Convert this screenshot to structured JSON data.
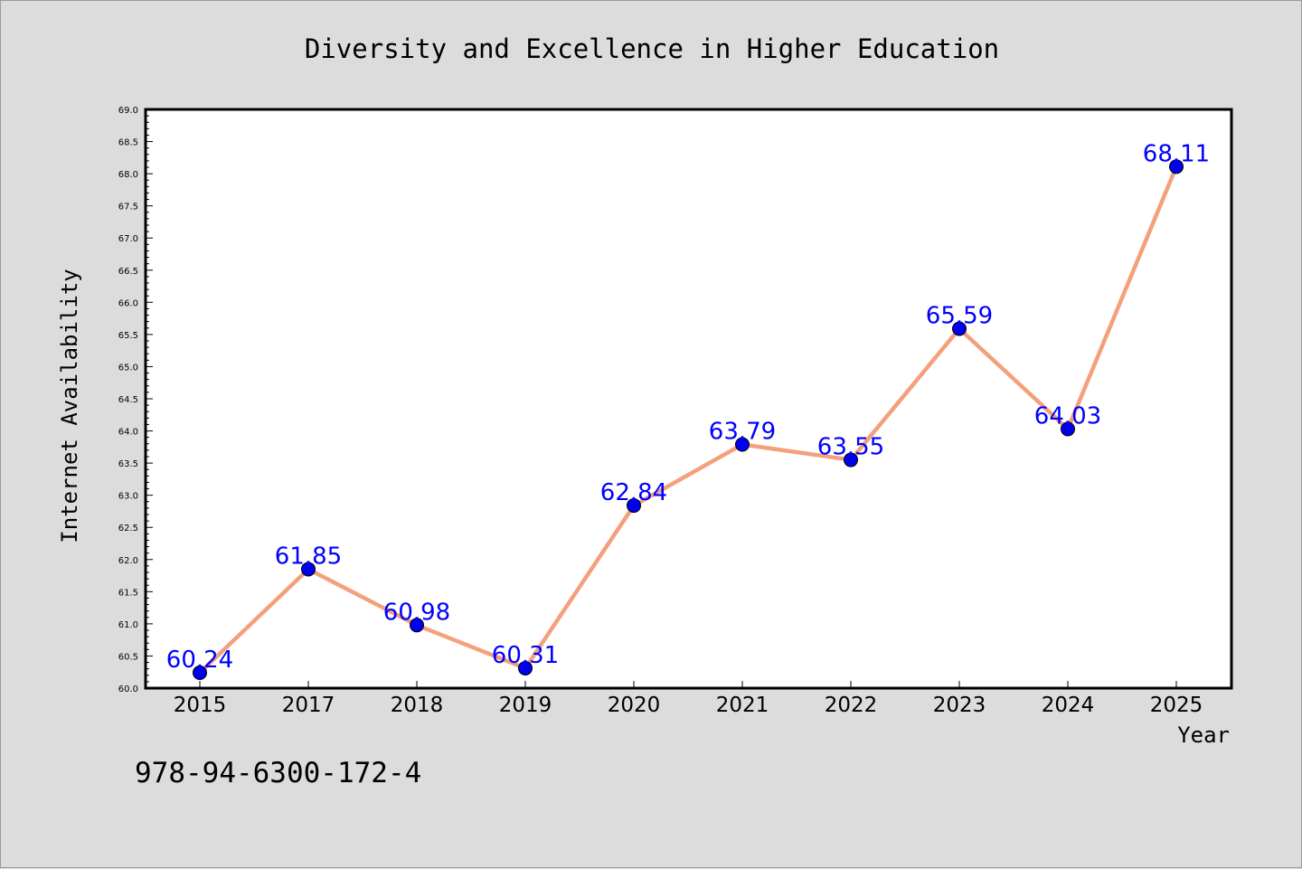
{
  "chart_data": {
    "type": "line",
    "title": "Diversity and Excellence in Higher Education",
    "xlabel": "Year",
    "ylabel": "Internet Availability",
    "categories": [
      "2015",
      "2017",
      "2018",
      "2019",
      "2020",
      "2021",
      "2022",
      "2023",
      "2024",
      "2025"
    ],
    "values": [
      60.24,
      61.85,
      60.98,
      60.31,
      62.84,
      63.79,
      63.55,
      65.59,
      64.03,
      68.11
    ],
    "data_labels": [
      "60.24",
      "61.85",
      "60.98",
      "60.31",
      "62.84",
      "63.79",
      "63.55",
      "65.59",
      "64.03",
      "68.11"
    ],
    "ylim": [
      60.0,
      69.0
    ],
    "yticks": [
      "60.0",
      "60.5",
      "61.0",
      "61.5",
      "62.0",
      "62.5",
      "63.0",
      "63.5",
      "64.0",
      "64.5",
      "65.0",
      "65.5",
      "66.0",
      "66.5",
      "67.0",
      "67.5",
      "68.0",
      "68.5",
      "69.0"
    ],
    "grid": false,
    "line_color": "#f4a07c",
    "marker_color": "#0000ee",
    "label_color": "#0000ff"
  },
  "annotation": {
    "isbn": "978-94-6300-172-4"
  }
}
